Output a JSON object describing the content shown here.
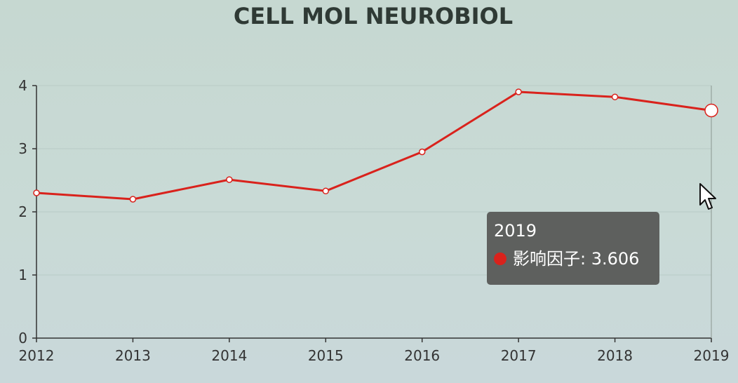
{
  "chart_data": {
    "type": "line",
    "title": "CELL MOL NEUROBIOL",
    "categories": [
      "2012",
      "2013",
      "2014",
      "2015",
      "2016",
      "2017",
      "2018",
      "2019"
    ],
    "series": [
      {
        "values": [
          2.3,
          2.2,
          2.51,
          2.33,
          2.95,
          3.9,
          3.82,
          3.606
        ]
      }
    ],
    "yticks": [
      "0",
      "1",
      "2",
      "3",
      "4"
    ],
    "ylim": [
      0,
      4
    ],
    "xlabel": "",
    "ylabel": "",
    "grid": true,
    "legend": "none"
  },
  "tooltip": {
    "title": "2019",
    "label": "影响因子",
    "separator": ": ",
    "value": "3.606",
    "marker_color": "#d9221c"
  },
  "colors": {
    "series": "#d9221c",
    "axis": "#333333",
    "background": "#c8d9d3"
  },
  "icons": {
    "cursor": "arrow-pointer-icon"
  }
}
